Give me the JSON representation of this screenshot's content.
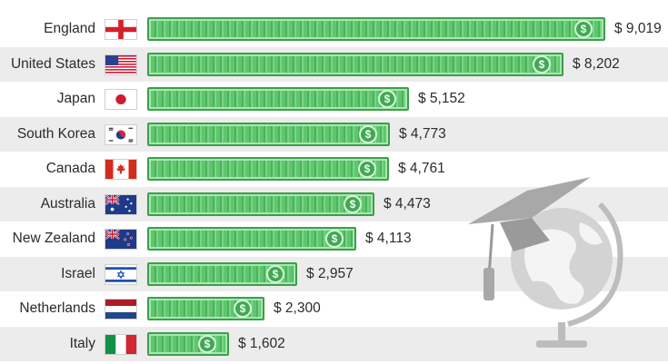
{
  "chart_data": {
    "type": "bar",
    "orientation": "horizontal",
    "categories": [
      "England",
      "United States",
      "Japan",
      "South Korea",
      "Canada",
      "Australia",
      "New Zealand",
      "Israel",
      "Netherlands",
      "Italy"
    ],
    "values": [
      9019,
      8202,
      5152,
      4773,
      4761,
      4473,
      4113,
      2957,
      2300,
      1602
    ],
    "value_labels": [
      "$ 9,019",
      "$ 8,202",
      "$ 5,152",
      "$ 4,773",
      "$ 4,761",
      "$ 4,473",
      "$ 4,113",
      "$ 2,957",
      "$ 2,300",
      "$ 1,602"
    ],
    "title": "",
    "xlabel": "",
    "ylabel": "",
    "grid": false,
    "legend": "none"
  },
  "flags": [
    "england-flag-icon",
    "usa-flag-icon",
    "japan-flag-icon",
    "south-korea-flag-icon",
    "canada-flag-icon",
    "australia-flag-icon",
    "new-zealand-flag-icon",
    "israel-flag-icon",
    "netherlands-flag-icon",
    "italy-flag-icon"
  ],
  "colors": {
    "bar": "#5fc66e",
    "bar_dark": "#3c9f4b",
    "row_shade": "#ececec",
    "text": "#2b2b2b",
    "decor": "#bdbdbd"
  },
  "decoration": [
    "graduation-cap-icon",
    "globe-icon"
  ]
}
